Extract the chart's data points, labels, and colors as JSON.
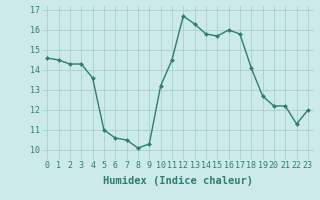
{
  "x": [
    0,
    1,
    2,
    3,
    4,
    5,
    6,
    7,
    8,
    9,
    10,
    11,
    12,
    13,
    14,
    15,
    16,
    17,
    18,
    19,
    20,
    21,
    22,
    23
  ],
  "y": [
    14.6,
    14.5,
    14.3,
    14.3,
    13.6,
    11.0,
    10.6,
    10.5,
    10.1,
    10.3,
    13.2,
    14.5,
    16.7,
    16.3,
    15.8,
    15.7,
    16.0,
    15.8,
    14.1,
    12.7,
    12.2,
    12.2,
    11.3,
    12.0
  ],
  "line_color": "#2e7d6e",
  "marker": "D",
  "marker_size": 2.0,
  "line_width": 1.0,
  "xlabel": "Humidex (Indice chaleur)",
  "xlim": [
    -0.5,
    23.5
  ],
  "ylim": [
    9.5,
    17.2
  ],
  "yticks": [
    10,
    11,
    12,
    13,
    14,
    15,
    16,
    17
  ],
  "xticks": [
    0,
    1,
    2,
    3,
    4,
    5,
    6,
    7,
    8,
    9,
    10,
    11,
    12,
    13,
    14,
    15,
    16,
    17,
    18,
    19,
    20,
    21,
    22,
    23
  ],
  "background_color": "#cceaea",
  "grid_color": "#aacece",
  "xlabel_fontsize": 7.5,
  "tick_fontsize": 6.0
}
